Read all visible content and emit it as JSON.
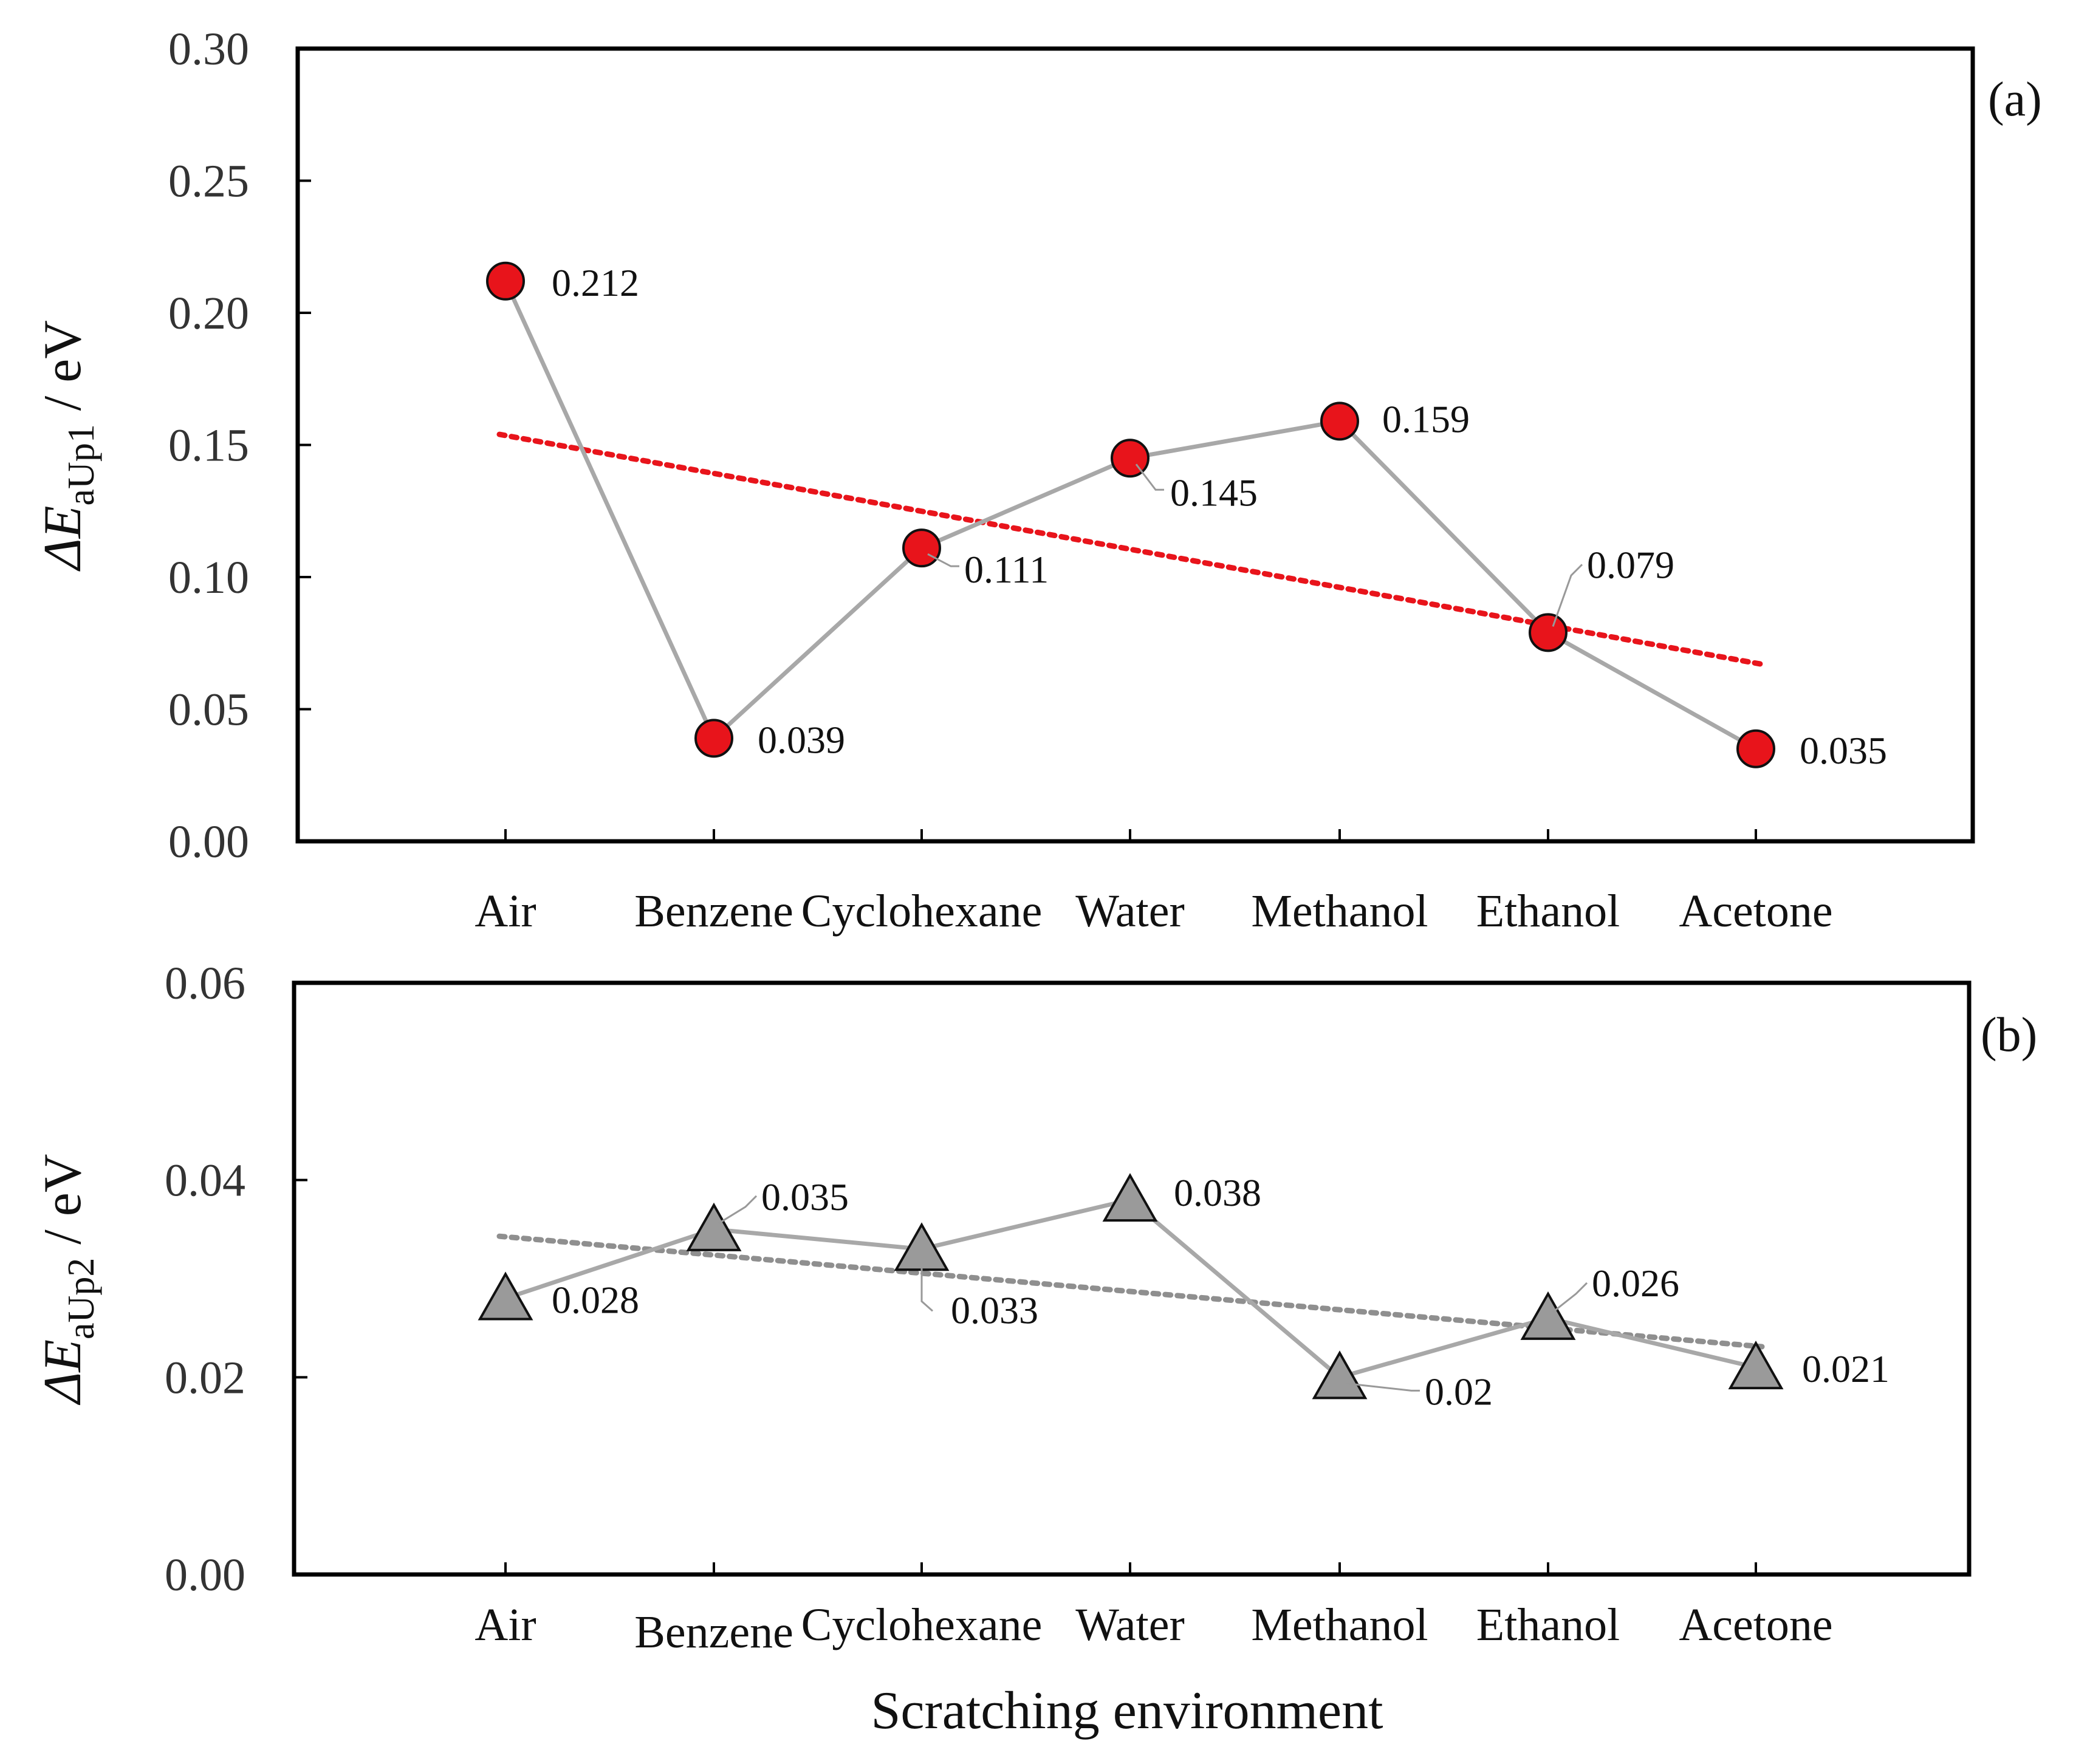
{
  "figure": {
    "xlabel": "Scratching environment"
  },
  "chart_data": [
    {
      "type": "line",
      "panel_label": "(a)",
      "ylabel": {
        "prefix": "ΔE",
        "subscript": "aUp1",
        "suffix": " / eV"
      },
      "categories": [
        "Air",
        "Benzene",
        "Cyclohexane",
        "Water",
        "Methanol",
        "Ethanol",
        "Acetone"
      ],
      "values": [
        0.212,
        0.039,
        0.111,
        0.145,
        0.159,
        0.079,
        0.035
      ],
      "data_labels": [
        "0.212",
        "0.039",
        "0.111",
        "0.145",
        "0.159",
        "0.079",
        "0.035"
      ],
      "ylim": [
        0,
        0.3
      ],
      "yticks": [
        0.0,
        0.05,
        0.1,
        0.15,
        0.2,
        0.25,
        0.3
      ],
      "ytick_labels": [
        "0.00",
        "0.05",
        "0.10",
        "0.15",
        "0.20",
        "0.25",
        "0.30"
      ],
      "marker": "circle",
      "marker_color": "#e8141b",
      "line_color": "#a8a8a8",
      "trendline": {
        "start": 0.154,
        "end": 0.067,
        "color": "#e8141b",
        "style": "dotted"
      }
    },
    {
      "type": "line",
      "panel_label": "(b)",
      "ylabel": {
        "prefix": "ΔE",
        "subscript": "aUp2",
        "suffix": " / eV"
      },
      "categories": [
        "Air",
        "Benzene",
        "Cyclohexane",
        "Water",
        "Methanol",
        "Ethanol",
        "Acetone"
      ],
      "values": [
        0.028,
        0.035,
        0.033,
        0.038,
        0.02,
        0.026,
        0.021
      ],
      "data_labels": [
        "0.028",
        "0.035",
        "0.033",
        "0.038",
        "0.02",
        "0.026",
        "0.021"
      ],
      "ylim": [
        0,
        0.06
      ],
      "yticks": [
        0.0,
        0.02,
        0.04,
        0.06
      ],
      "ytick_labels": [
        "0.00",
        "0.02",
        "0.04",
        "0.06"
      ],
      "marker": "triangle",
      "marker_color": "#9a9a9a",
      "line_color": "#a8a8a8",
      "trendline": {
        "start": 0.0343,
        "end": 0.0231,
        "color": "#8f8f8f",
        "style": "dotted"
      }
    }
  ]
}
